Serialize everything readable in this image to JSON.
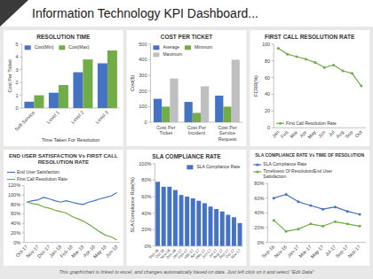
{
  "title": "Information Technology KPI Dashboard...",
  "subtitle": "This graph/chart is linked to excel, and changes automatically based on data. Just left click on it and select \"Edit Data\"",
  "chart_data": [
    {
      "type": "bar",
      "title": "RESOLUTION TIME",
      "xlabel": "Time Taken For Resolution",
      "ylabel": "Cost Per Ticket",
      "categories": [
        "Self-Service",
        "Level 1",
        "Level 2",
        "Level 3"
      ],
      "series": [
        {
          "name": "Cost(Min)",
          "color": "#4472c4",
          "values": [
            0.5,
            1.2,
            2.8,
            3.5
          ]
        },
        {
          "name": "Cost(Max)",
          "color": "#70ad47",
          "values": [
            1.0,
            1.8,
            3.8,
            4.5
          ]
        }
      ],
      "ylim": [
        0,
        5
      ],
      "yticks": [
        0,
        1,
        2,
        3,
        4,
        5
      ],
      "grid": false,
      "legend": "upper left"
    },
    {
      "type": "bar",
      "title": "COST PER TICKET",
      "ylabel": "Cost($)",
      "categories": [
        "Cost Per\nTicket",
        "Cost Per\nIncident",
        "Cost Per\nService\nRequest"
      ],
      "series": [
        {
          "name": "Average",
          "color": "#4472c4",
          "values": [
            150,
            130,
            170
          ]
        },
        {
          "name": "Minimum",
          "color": "#70ad47",
          "values": [
            100,
            60,
            100
          ]
        },
        {
          "name": "Maximum",
          "color": "#bfbfbf",
          "values": [
            280,
            230,
            400
          ]
        }
      ],
      "ylim": [
        0,
        500
      ],
      "yticks": [
        0,
        100,
        200,
        300,
        400,
        500
      ],
      "grid": false,
      "legend": "upper left"
    },
    {
      "type": "line",
      "title": "FIRST CALL RESOLUTION RATE",
      "ylabel": "FCRR(%)",
      "categories": [
        "Jan",
        "Feb",
        "Mar",
        "Apr",
        "May",
        "Jun",
        "Jul",
        "Aug",
        "Sep",
        "Oct"
      ],
      "series": [
        {
          "name": "First Call Resolution Rate",
          "color": "#70ad47",
          "marker": "circle",
          "values": [
            95,
            88,
            85,
            82,
            78,
            72,
            75,
            68,
            65,
            50
          ]
        }
      ],
      "ylim": [
        0,
        100
      ],
      "yticks": [
        0,
        20,
        40,
        60,
        80,
        100
      ],
      "grid": false,
      "legend": "lower left"
    },
    {
      "type": "line",
      "title": "END USER SATISFACTION Vs FIRST CALL\nRESOLUTION RATE",
      "categories": [
        "Oct-17",
        null,
        "Nov-17",
        null,
        "Dec-17",
        null,
        "Jan-18",
        null,
        "Feb-18",
        null,
        "Mar-18",
        null,
        "Apr-18",
        null,
        "May-18",
        null,
        "Jun-18"
      ],
      "series": [
        {
          "name": "End User Satisfaction",
          "color": "#4472c4",
          "values": [
            85,
            88,
            90,
            95,
            92,
            88,
            85,
            88,
            85,
            82,
            80,
            85,
            88,
            92,
            95,
            98,
            105
          ]
        },
        {
          "name": "First Call Resolution Rate",
          "color": "#70ad47",
          "values": [
            85,
            82,
            80,
            75,
            72,
            68,
            65,
            62,
            55,
            50,
            45,
            38,
            30,
            22,
            15,
            12,
            5
          ]
        }
      ],
      "ylim": [
        0,
        120
      ],
      "yticks": [
        {
          "value": 0,
          "label": "0%"
        },
        {
          "value": 20,
          "label": "20%"
        },
        {
          "value": 40,
          "label": "40%"
        },
        {
          "value": 60,
          "label": "60%"
        },
        {
          "value": 80,
          "label": "80%"
        },
        {
          "value": 100,
          "label": "100%"
        },
        {
          "value": 120,
          "label": "120%"
        }
      ],
      "grid": false,
      "legend": "top"
    },
    {
      "type": "bar",
      "title": "SLA COMPLIANCE RATE",
      "ylabel": "SLA Compliance Rate(%)",
      "categories": [
        "Sep-16",
        "Oct-16",
        "Nov-16",
        "Dec-16",
        "Jan-17",
        "Feb-17",
        "Mar-17",
        "Apr-17",
        "May-17",
        "Jun-17",
        "Jul-17",
        "Aug-17",
        "Sep-17",
        "Oct-17",
        "Nov-17"
      ],
      "series": [
        {
          "name": "SLA Compliance Rate",
          "color": "#4472c4",
          "values": [
            78,
            72,
            72,
            68,
            62,
            60,
            58,
            55,
            52,
            48,
            45,
            42,
            38,
            35,
            28
          ]
        }
      ],
      "ylim": [
        0,
        100
      ],
      "yticks": [
        {
          "value": 0,
          "label": "0%"
        },
        {
          "value": 20,
          "label": "20%"
        },
        {
          "value": 40,
          "label": "40%"
        },
        {
          "value": 60,
          "label": "60%"
        },
        {
          "value": 80,
          "label": "80%"
        },
        {
          "value": 100,
          "label": "100%"
        }
      ],
      "grid": false,
      "legend": "upper right"
    },
    {
      "type": "line",
      "title": "SLA COMPLIANCE RATE Vs TIME OF RESOLUTION",
      "categories": [
        "Sep-16",
        "Nov-16",
        "Jan-17",
        "Mar-17",
        "May-17",
        "Jul-17",
        "Sep-17",
        "Nov-17"
      ],
      "series": [
        {
          "name": "SLA Compliance Rate",
          "color": "#4472c4",
          "marker": "circle",
          "values": [
            60,
            65,
            55,
            50,
            45,
            48,
            42,
            38
          ]
        },
        {
          "name": "Timeliness Of Resolution/End User\nSatisfaction",
          "color": "#70ad47",
          "marker": "circle",
          "values": [
            30,
            15,
            18,
            25,
            22,
            28,
            25,
            22
          ]
        }
      ],
      "ylim": [
        0,
        80
      ],
      "yticks": [
        {
          "value": 0,
          "label": "0%"
        },
        {
          "value": 20,
          "label": "20%"
        },
        {
          "value": 40,
          "label": "40%"
        },
        {
          "value": 60,
          "label": "60%"
        },
        {
          "value": 80,
          "label": "80%"
        }
      ],
      "grid": false,
      "legend": "top"
    }
  ]
}
